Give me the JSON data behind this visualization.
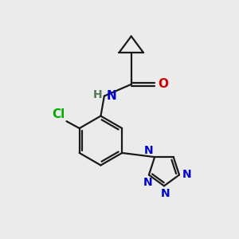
{
  "background_color": "#ebebeb",
  "bond_color": "#1a1a1a",
  "atom_colors": {
    "N": "#0000cc",
    "O": "#cc0000",
    "Cl": "#00aa00",
    "H": "#557755",
    "C": "#1a1a1a"
  },
  "figsize": [
    3.0,
    3.0
  ],
  "dpi": 100
}
